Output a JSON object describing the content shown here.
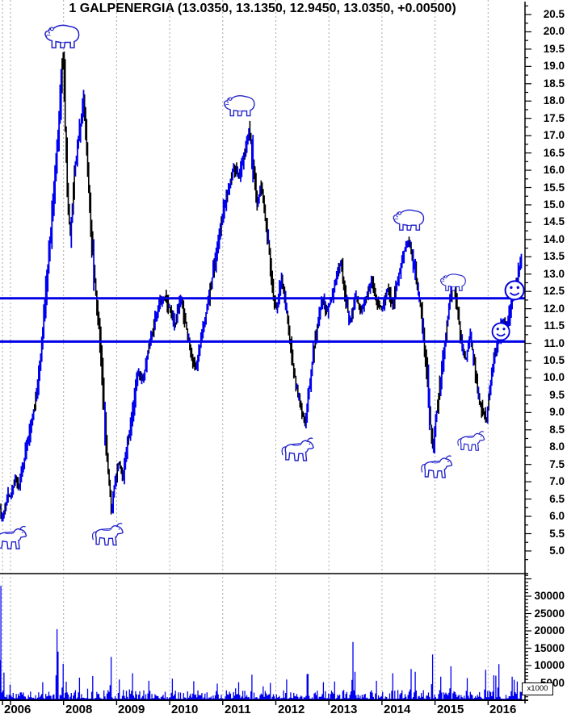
{
  "title": "1 GALPENERGIA (13.0350, 13.1350, 12.9450, 13.0350, +0.00500)",
  "colors": {
    "bar_up": "#0000f0",
    "bar_down": "#000000",
    "trendline": "#0000e8",
    "volume": "#0000f0",
    "grid": "#a8a8a8",
    "axis": "#000000",
    "icon_blue": "#2222cc",
    "label": "#000000"
  },
  "chart_data": [
    {
      "name": "price",
      "type": "bar",
      "symbol": "GALPENERGIA",
      "ohlc_last": {
        "open": "13.0350",
        "high": "13.1350",
        "low": "12.9450",
        "close": "13.0350",
        "change": "+0.00500"
      },
      "ylim": [
        4.75,
        20.9
      ],
      "grid": "vertical-dashed",
      "legend": "none",
      "y_ticks": [
        "20.5",
        "20.0",
        "19.5",
        "19.0",
        "18.5",
        "18.0",
        "17.5",
        "17.0",
        "16.5",
        "16.0",
        "15.5",
        "15.0",
        "14.5",
        "14.0",
        "13.5",
        "13.0",
        "12.5",
        "12.0",
        "11.5",
        "11.0",
        "10.5",
        "10.0",
        "9.5",
        "9.0",
        "8.5",
        "8.0",
        "7.5",
        "7.0",
        "6.5",
        "6.0",
        "5.5",
        "5.0"
      ],
      "x_ticks": [
        {
          "label": "2006",
          "year_x": 2006.85
        },
        {
          "label": "",
          "year_x": 2007
        },
        {
          "label": "2008",
          "year_x": 2008
        },
        {
          "label": "2009",
          "year_x": 2009
        },
        {
          "label": "2010",
          "year_x": 2010
        },
        {
          "label": "2011",
          "year_x": 2011
        },
        {
          "label": "2012",
          "year_x": 2012
        },
        {
          "label": "2013",
          "year_x": 2013
        },
        {
          "label": "2014",
          "year_x": 2014
        },
        {
          "label": "2015",
          "year_x": 2015
        },
        {
          "label": "2016",
          "year_x": 2016
        }
      ],
      "horizontal_lines": [
        12.3,
        11.05
      ],
      "series": [
        {
          "name": "GALPENERGIA weekly",
          "points": [
            [
              2006.8,
              6.3
            ],
            [
              2006.83,
              5.85
            ],
            [
              2006.88,
              6.1
            ],
            [
              2006.95,
              6.65
            ],
            [
              2007.0,
              6.55
            ],
            [
              2007.08,
              7.05
            ],
            [
              2007.16,
              6.9
            ],
            [
              2007.25,
              7.6
            ],
            [
              2007.33,
              8.2
            ],
            [
              2007.42,
              8.9
            ],
            [
              2007.5,
              9.7
            ],
            [
              2007.58,
              10.8
            ],
            [
              2007.65,
              12.2
            ],
            [
              2007.72,
              13.5
            ],
            [
              2007.78,
              14.6
            ],
            [
              2007.85,
              16.0
            ],
            [
              2007.92,
              17.6
            ],
            [
              2007.97,
              18.9
            ],
            [
              2008.0,
              19.3
            ],
            [
              2008.03,
              17.2
            ],
            [
              2008.08,
              15.0
            ],
            [
              2008.13,
              14.1
            ],
            [
              2008.2,
              15.9
            ],
            [
              2008.3,
              17.1
            ],
            [
              2008.38,
              18.1
            ],
            [
              2008.44,
              16.4
            ],
            [
              2008.52,
              14.3
            ],
            [
              2008.6,
              12.5
            ],
            [
              2008.68,
              11.2
            ],
            [
              2008.76,
              9.2
            ],
            [
              2008.84,
              7.3
            ],
            [
              2008.9,
              6.1
            ],
            [
              2008.96,
              6.9
            ],
            [
              2009.04,
              7.6
            ],
            [
              2009.12,
              7.1
            ],
            [
              2009.2,
              8.1
            ],
            [
              2009.3,
              8.9
            ],
            [
              2009.4,
              10.2
            ],
            [
              2009.5,
              9.9
            ],
            [
              2009.6,
              10.9
            ],
            [
              2009.7,
              11.5
            ],
            [
              2009.8,
              12.1
            ],
            [
              2009.9,
              12.3
            ],
            [
              2010.0,
              12.0
            ],
            [
              2010.1,
              11.5
            ],
            [
              2010.2,
              12.3
            ],
            [
              2010.3,
              11.6
            ],
            [
              2010.42,
              10.5
            ],
            [
              2010.5,
              10.3
            ],
            [
              2010.6,
              11.2
            ],
            [
              2010.7,
              12.0
            ],
            [
              2010.8,
              12.9
            ],
            [
              2010.9,
              13.8
            ],
            [
              2011.0,
              14.8
            ],
            [
              2011.1,
              15.4
            ],
            [
              2011.2,
              16.1
            ],
            [
              2011.3,
              15.8
            ],
            [
              2011.4,
              16.4
            ],
            [
              2011.5,
              17.2
            ],
            [
              2011.57,
              16.2
            ],
            [
              2011.65,
              15.0
            ],
            [
              2011.72,
              15.6
            ],
            [
              2011.8,
              14.6
            ],
            [
              2011.88,
              13.6
            ],
            [
              2011.95,
              12.4
            ],
            [
              2012.02,
              12.0
            ],
            [
              2012.1,
              12.9
            ],
            [
              2012.18,
              12.2
            ],
            [
              2012.28,
              10.8
            ],
            [
              2012.38,
              9.8
            ],
            [
              2012.48,
              9.1
            ],
            [
              2012.55,
              8.7
            ],
            [
              2012.62,
              9.6
            ],
            [
              2012.7,
              10.6
            ],
            [
              2012.8,
              11.7
            ],
            [
              2012.88,
              12.3
            ],
            [
              2012.95,
              11.9
            ],
            [
              2013.05,
              12.3
            ],
            [
              2013.15,
              13.0
            ],
            [
              2013.22,
              13.4
            ],
            [
              2013.3,
              12.4
            ],
            [
              2013.4,
              11.6
            ],
            [
              2013.5,
              12.4
            ],
            [
              2013.6,
              11.9
            ],
            [
              2013.7,
              12.3
            ],
            [
              2013.8,
              12.8
            ],
            [
              2013.9,
              12.2
            ],
            [
              2014.0,
              12.0
            ],
            [
              2014.1,
              12.6
            ],
            [
              2014.2,
              12.1
            ],
            [
              2014.3,
              12.9
            ],
            [
              2014.4,
              13.6
            ],
            [
              2014.5,
              14.0
            ],
            [
              2014.58,
              13.4
            ],
            [
              2014.66,
              12.7
            ],
            [
              2014.74,
              11.9
            ],
            [
              2014.82,
              10.6
            ],
            [
              2014.9,
              8.9
            ],
            [
              2014.96,
              7.9
            ],
            [
              2015.04,
              9.2
            ],
            [
              2015.12,
              10.1
            ],
            [
              2015.2,
              11.2
            ],
            [
              2015.28,
              12.3
            ],
            [
              2015.34,
              12.8
            ],
            [
              2015.42,
              12.0
            ],
            [
              2015.5,
              11.0
            ],
            [
              2015.58,
              10.5
            ],
            [
              2015.66,
              11.3
            ],
            [
              2015.74,
              10.4
            ],
            [
              2015.82,
              9.4
            ],
            [
              2015.9,
              9.0
            ],
            [
              2015.97,
              8.8
            ],
            [
              2016.04,
              9.8
            ],
            [
              2016.12,
              10.7
            ],
            [
              2016.2,
              11.1
            ],
            [
              2016.28,
              11.7
            ],
            [
              2016.35,
              11.4
            ],
            [
              2016.42,
              12.1
            ],
            [
              2016.5,
              12.5
            ],
            [
              2016.57,
              13.0
            ],
            [
              2016.63,
              13.45
            ],
            [
              2016.64,
              13.04
            ]
          ]
        }
      ],
      "markers": {
        "bears": [
          {
            "year": 2007.97,
            "price": 19.85,
            "scale": 0.95
          },
          {
            "year": 2011.31,
            "price": 17.85,
            "scale": 0.85
          },
          {
            "year": 2014.5,
            "price": 14.55,
            "scale": 0.85
          },
          {
            "year": 2015.34,
            "price": 12.75,
            "scale": 0.7
          }
        ],
        "bulls": [
          {
            "year": 2006.98,
            "price": 5.35,
            "scale": 0.95
          },
          {
            "year": 2008.81,
            "price": 5.45,
            "scale": 0.92
          },
          {
            "year": 2012.39,
            "price": 7.9,
            "scale": 0.95
          },
          {
            "year": 2015.01,
            "price": 7.4,
            "scale": 0.92
          },
          {
            "year": 2015.66,
            "price": 8.15,
            "scale": 0.8
          }
        ],
        "smileys": [
          {
            "year": 2016.24,
            "price": 11.34,
            "scale": 0.92
          },
          {
            "year": 2016.5,
            "price": 12.53,
            "scale": 1.0
          }
        ]
      }
    },
    {
      "name": "volume",
      "type": "bar",
      "unit_label": "x1000",
      "ylim": [
        0,
        36000
      ],
      "y_ticks": [
        "30000",
        "25000",
        "20000",
        "15000",
        "10000",
        "5000"
      ],
      "spikes": [
        [
          2006.82,
          33000
        ],
        [
          2006.87,
          8000
        ],
        [
          2007.0,
          4500
        ],
        [
          2007.6,
          5200
        ],
        [
          2007.87,
          20500
        ],
        [
          2007.9,
          14000
        ],
        [
          2008.0,
          10500
        ],
        [
          2008.3,
          6500
        ],
        [
          2008.55,
          7000
        ],
        [
          2008.9,
          12500
        ],
        [
          2009.05,
          6000
        ],
        [
          2009.3,
          7800
        ],
        [
          2009.6,
          5600
        ],
        [
          2010.05,
          6200
        ],
        [
          2010.45,
          5500
        ],
        [
          2010.9,
          4800
        ],
        [
          2011.3,
          5200
        ],
        [
          2011.55,
          7400
        ],
        [
          2011.9,
          5000
        ],
        [
          2012.2,
          6000
        ],
        [
          2012.6,
          7600
        ],
        [
          2012.9,
          5200
        ],
        [
          2013.1,
          5400
        ],
        [
          2013.45,
          16800
        ],
        [
          2013.5,
          8200
        ],
        [
          2013.9,
          5600
        ],
        [
          2014.2,
          7800
        ],
        [
          2014.55,
          9000
        ],
        [
          2014.95,
          13200
        ],
        [
          2015.1,
          6800
        ],
        [
          2015.3,
          9800
        ],
        [
          2015.6,
          6400
        ],
        [
          2015.95,
          8800
        ],
        [
          2016.1,
          7200
        ],
        [
          2016.2,
          10400
        ],
        [
          2016.45,
          6800
        ],
        [
          2016.55,
          5400
        ]
      ]
    }
  ]
}
